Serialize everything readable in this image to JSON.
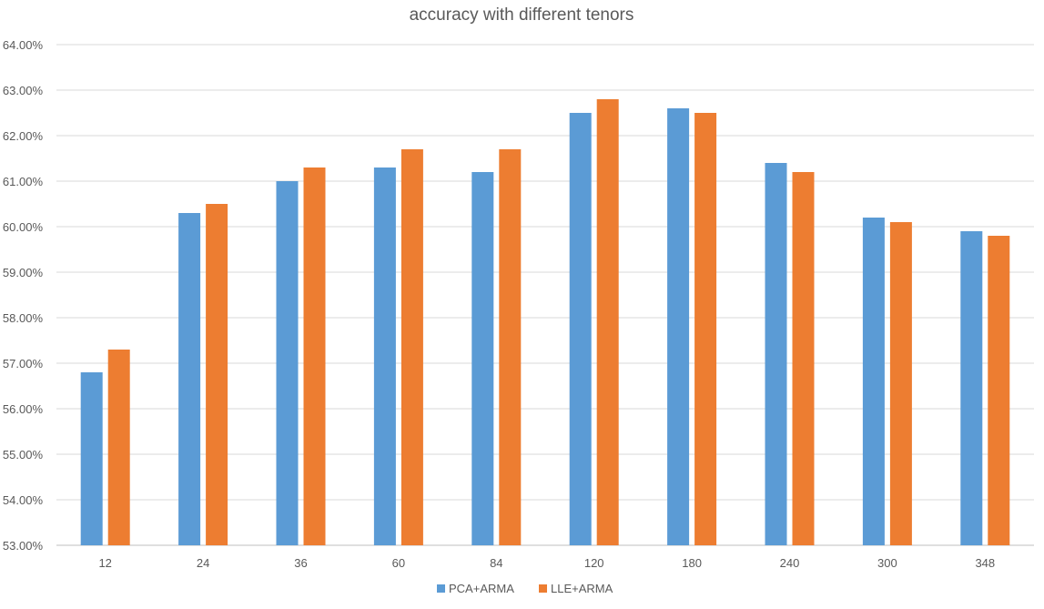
{
  "chart_data": {
    "type": "bar",
    "title": "accuracy with different tenors",
    "xlabel": "",
    "ylabel": "",
    "categories": [
      "12",
      "24",
      "36",
      "60",
      "84",
      "120",
      "180",
      "240",
      "300",
      "348"
    ],
    "series": [
      {
        "name": "PCA+ARMA",
        "color": "#5B9BD5",
        "values": [
          0.568,
          0.603,
          0.61,
          0.613,
          0.612,
          0.625,
          0.626,
          0.614,
          0.602,
          0.599
        ]
      },
      {
        "name": "LLE+ARMA",
        "color": "#ED7D31",
        "values": [
          0.573,
          0.605,
          0.613,
          0.617,
          0.617,
          0.628,
          0.625,
          0.612,
          0.601,
          0.598
        ]
      }
    ],
    "ylim": [
      0.53,
      0.64
    ],
    "yticks": [
      "53.00%",
      "54.00%",
      "55.00%",
      "56.00%",
      "57.00%",
      "58.00%",
      "59.00%",
      "60.00%",
      "61.00%",
      "62.00%",
      "63.00%",
      "64.00%"
    ],
    "ytick_values": [
      0.53,
      0.54,
      0.55,
      0.56,
      0.57,
      0.58,
      0.59,
      0.6,
      0.61,
      0.62,
      0.63,
      0.64
    ],
    "grid": true,
    "legend_position": "bottom"
  }
}
